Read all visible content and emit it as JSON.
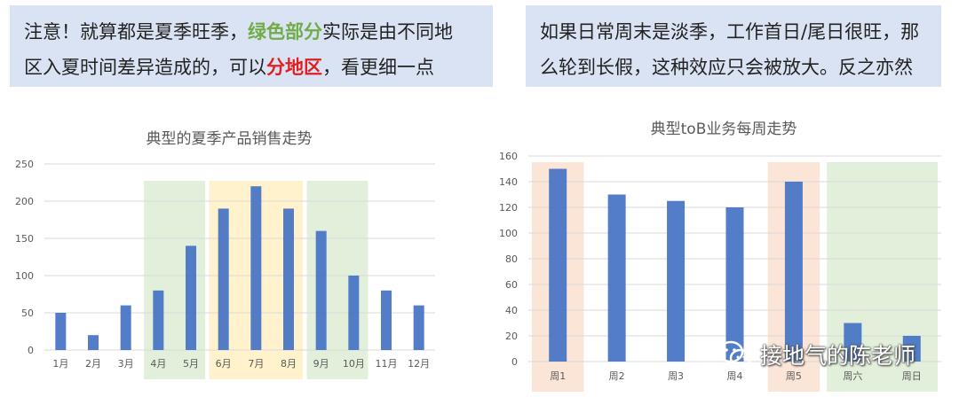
{
  "notes": {
    "left": {
      "line1_a": "注意！就算都是夏季旺季，",
      "line1_green": "绿色部分",
      "line1_b": "实际是由不同地",
      "line2_a": "区入夏时间差异造成的，可以",
      "line2_red": "分地区",
      "line2_b": "，看更细一点"
    },
    "right": {
      "line1": "如果日常周末是淡季，工作首日/尾日很旺，那",
      "line2": "么轮到长假，这种效应只会被放大。反之亦然"
    }
  },
  "watermark": {
    "text": "接地气的陈老师",
    "icon": "wechat-icon"
  },
  "colors": {
    "bar": "#4472c4",
    "green_zone": "#e2efda",
    "yellow_zone": "#fff2cc",
    "orange_zone": "#fbe5d6",
    "note_bg": "#dae3f3"
  },
  "chart_data": [
    {
      "type": "bar",
      "title": "典型的夏季产品销售走势",
      "categories": [
        "1月",
        "2月",
        "3月",
        "4月",
        "5月",
        "6月",
        "7月",
        "8月",
        "9月",
        "10月",
        "11月",
        "12月"
      ],
      "values": [
        50,
        20,
        60,
        80,
        140,
        190,
        220,
        190,
        160,
        100,
        80,
        60
      ],
      "ylim": [
        0,
        250
      ],
      "yticks": [
        0,
        50,
        100,
        150,
        200,
        250
      ],
      "grid": true,
      "highlights": [
        {
          "from": 3,
          "to": 4,
          "color": "green"
        },
        {
          "from": 5,
          "to": 7,
          "color": "yellow"
        },
        {
          "from": 8,
          "to": 9,
          "color": "green"
        }
      ]
    },
    {
      "type": "bar",
      "title": "典型toB业务每周走势",
      "categories": [
        "周1",
        "周2",
        "周3",
        "周4",
        "周5",
        "周六",
        "周日"
      ],
      "values": [
        150,
        130,
        125,
        120,
        140,
        30,
        20
      ],
      "ylim": [
        0,
        160
      ],
      "yticks": [
        0,
        20,
        40,
        60,
        80,
        100,
        120,
        140,
        160
      ],
      "grid": true,
      "highlights": [
        {
          "from": 0,
          "to": 0,
          "color": "orange"
        },
        {
          "from": 4,
          "to": 4,
          "color": "orange"
        },
        {
          "from": 5,
          "to": 6,
          "color": "green"
        }
      ]
    }
  ]
}
